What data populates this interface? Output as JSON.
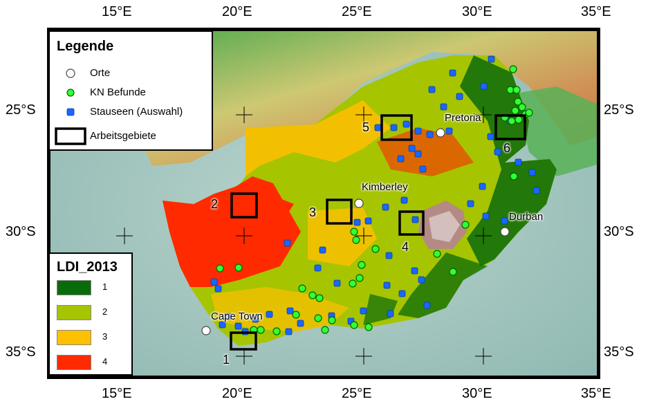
{
  "axes": {
    "top_lon_labels": [
      "15°E",
      "20°E",
      "25°E",
      "30°E",
      "35°E"
    ],
    "bottom_lon_labels": [
      "15°E",
      "20°E",
      "25°E",
      "30°E",
      "35°E"
    ],
    "left_lat_labels": [
      "25°S",
      "30°S",
      "35°S"
    ],
    "right_lat_labels": [
      "25°S",
      "30°S",
      "35°S"
    ]
  },
  "legend": {
    "title": "Legende",
    "items": [
      {
        "label": "Orte",
        "symbol": "white-circle"
      },
      {
        "label": "KN Befunde",
        "symbol": "green-dot",
        "color": "#33ff33"
      },
      {
        "label": "Stauseen (Auswahl)",
        "symbol": "blue-square",
        "color": "#1a66ff"
      },
      {
        "label": "Arbeitsgebiete",
        "symbol": "black-rectangle"
      }
    ]
  },
  "ldi_legend": {
    "title": "LDI_2013",
    "classes": [
      {
        "label": "1",
        "color": "#0a6b0a"
      },
      {
        "label": "2",
        "color": "#a6c400"
      },
      {
        "label": "3",
        "color": "#ffc000"
      },
      {
        "label": "4",
        "color": "#ff2a00"
      }
    ]
  },
  "cities": [
    {
      "name": "Pretoria"
    },
    {
      "name": "Kimberley"
    },
    {
      "name": "Durban"
    },
    {
      "name": "Cape Town"
    }
  ],
  "study_areas": [
    "1",
    "2",
    "3",
    "4",
    "5",
    "6"
  ]
}
